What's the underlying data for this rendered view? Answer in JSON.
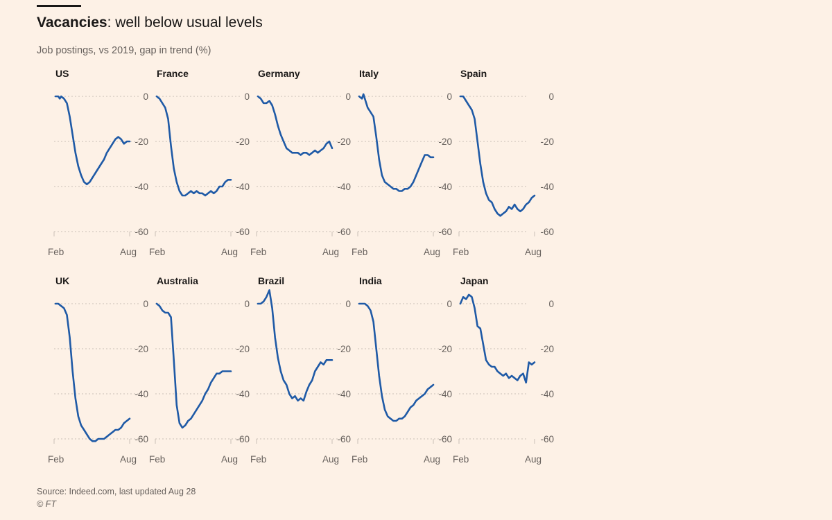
{
  "header": {
    "title_bold": "Vacancies",
    "title_rest": ": well below usual levels",
    "subtitle": "Job postings, vs 2019, gap in trend (%)"
  },
  "footer": {
    "source": "Source: Indeed.com, last updated Aug 28",
    "copyright": "© FT"
  },
  "colors": {
    "line": "#1f5aa6",
    "grid": "#c9bfb5",
    "background": "#fdf1e6"
  },
  "chart_data": [
    {
      "type": "line",
      "title": "US",
      "x_ticks": [
        "Feb",
        "Aug"
      ],
      "ylim": [
        -60,
        0
      ],
      "y_ticks": [
        0,
        -20,
        -40,
        -60
      ],
      "x_range": [
        0,
        26
      ],
      "x": [
        0,
        1,
        1.5,
        2,
        3,
        4,
        5,
        6,
        7,
        8,
        9,
        10,
        11,
        12,
        13,
        14,
        15,
        16,
        17,
        18,
        19,
        20,
        21,
        22,
        23,
        24,
        25,
        26
      ],
      "values": [
        0,
        0,
        -1,
        0,
        -1,
        -3,
        -9,
        -17,
        -25,
        -31,
        -35,
        -38,
        -39,
        -38,
        -36,
        -34,
        -32,
        -30,
        -28,
        -25,
        -23,
        -21,
        -19,
        -18,
        -19,
        -21,
        -20,
        -20
      ]
    },
    {
      "type": "line",
      "title": "France",
      "x_ticks": [
        "Feb",
        "Aug"
      ],
      "ylim": [
        -60,
        0
      ],
      "y_ticks": [
        0,
        -20,
        -40,
        -60
      ],
      "x_range": [
        0,
        26
      ],
      "x": [
        0,
        1,
        2,
        3,
        4,
        5,
        6,
        7,
        8,
        9,
        10,
        11,
        12,
        13,
        14,
        15,
        16,
        17,
        18,
        19,
        20,
        21,
        22,
        23,
        24,
        25,
        26
      ],
      "values": [
        0,
        -1,
        -3,
        -5,
        -10,
        -22,
        -32,
        -38,
        -42,
        -44,
        -44,
        -43,
        -42,
        -43,
        -42,
        -43,
        -43,
        -44,
        -43,
        -42,
        -43,
        -42,
        -40,
        -40,
        -38,
        -37,
        -37
      ]
    },
    {
      "type": "line",
      "title": "Germany",
      "x_ticks": [
        "Feb",
        "Aug"
      ],
      "ylim": [
        -60,
        0
      ],
      "y_ticks": [
        0,
        -20,
        -40,
        -60
      ],
      "x_range": [
        0,
        26
      ],
      "x": [
        0,
        1,
        2,
        3,
        4,
        5,
        6,
        7,
        8,
        9,
        10,
        11,
        12,
        13,
        14,
        15,
        16,
        17,
        18,
        19,
        20,
        21,
        22,
        23,
        24,
        25,
        26
      ],
      "values": [
        0,
        -1,
        -3,
        -3,
        -2,
        -4,
        -8,
        -13,
        -17,
        -20,
        -23,
        -24,
        -25,
        -25,
        -25,
        -26,
        -25,
        -25,
        -26,
        -25,
        -24,
        -25,
        -24,
        -23,
        -21,
        -20,
        -23
      ]
    },
    {
      "type": "line",
      "title": "Italy",
      "x_ticks": [
        "Feb",
        "Aug"
      ],
      "ylim": [
        -60,
        0
      ],
      "y_ticks": [
        0,
        -20,
        -40,
        -60
      ],
      "x_range": [
        0,
        26
      ],
      "x": [
        0,
        1,
        1.5,
        2,
        3,
        4,
        5,
        6,
        7,
        8,
        9,
        10,
        11,
        12,
        13,
        14,
        15,
        16,
        17,
        18,
        19,
        20,
        21,
        22,
        23,
        24,
        25,
        26
      ],
      "values": [
        0,
        -1,
        1,
        -1,
        -5,
        -7,
        -9,
        -18,
        -28,
        -35,
        -38,
        -39,
        -40,
        -41,
        -41,
        -42,
        -42,
        -41,
        -41,
        -40,
        -38,
        -35,
        -32,
        -29,
        -26,
        -26,
        -27,
        -27
      ]
    },
    {
      "type": "line",
      "title": "Spain",
      "x_ticks": [
        "Feb",
        "Aug"
      ],
      "ylim": [
        -60,
        0
      ],
      "y_ticks": [
        0,
        -20,
        -40,
        -60
      ],
      "x_range": [
        0,
        26
      ],
      "x": [
        0,
        1,
        2,
        3,
        4,
        5,
        6,
        7,
        8,
        9,
        10,
        11,
        12,
        13,
        14,
        15,
        16,
        17,
        18,
        19,
        20,
        21,
        22,
        23,
        24,
        25,
        26
      ],
      "values": [
        0,
        0,
        -2,
        -4,
        -6,
        -10,
        -20,
        -30,
        -38,
        -43,
        -46,
        -47,
        -50,
        -52,
        -53,
        -52,
        -51,
        -49,
        -50,
        -48,
        -50,
        -51,
        -50,
        -48,
        -47,
        -45,
        -44
      ]
    },
    {
      "type": "line",
      "title": "UK",
      "x_ticks": [
        "Feb",
        "Aug"
      ],
      "ylim": [
        -60,
        0
      ],
      "y_ticks": [
        0,
        -20,
        -40,
        -60
      ],
      "x_range": [
        0,
        26
      ],
      "x": [
        0,
        1,
        2,
        3,
        4,
        5,
        6,
        7,
        8,
        9,
        10,
        11,
        12,
        13,
        14,
        15,
        16,
        17,
        18,
        19,
        20,
        21,
        22,
        23,
        24,
        25,
        26
      ],
      "values": [
        0,
        0,
        -1,
        -2,
        -5,
        -15,
        -30,
        -42,
        -50,
        -54,
        -56,
        -58,
        -60,
        -61,
        -61,
        -60,
        -60,
        -60,
        -59,
        -58,
        -57,
        -56,
        -56,
        -55,
        -53,
        -52,
        -51
      ]
    },
    {
      "type": "line",
      "title": "Australia",
      "x_ticks": [
        "Feb",
        "Aug"
      ],
      "ylim": [
        -60,
        0
      ],
      "y_ticks": [
        0,
        -20,
        -40,
        -60
      ],
      "x_range": [
        0,
        26
      ],
      "x": [
        0,
        1,
        2,
        3,
        4,
        5,
        6,
        7,
        8,
        9,
        10,
        11,
        12,
        13,
        14,
        15,
        16,
        17,
        18,
        19,
        20,
        21,
        22,
        23,
        24,
        25,
        26
      ],
      "values": [
        0,
        -1,
        -3,
        -4,
        -4,
        -6,
        -25,
        -45,
        -53,
        -55,
        -54,
        -52,
        -51,
        -49,
        -47,
        -45,
        -43,
        -40,
        -38,
        -35,
        -33,
        -31,
        -31,
        -30,
        -30,
        -30,
        -30
      ]
    },
    {
      "type": "line",
      "title": "Brazil",
      "x_ticks": [
        "Feb",
        "Aug"
      ],
      "ylim": [
        -60,
        0
      ],
      "y_ticks": [
        0,
        -20,
        -40,
        -60
      ],
      "x_range": [
        0,
        26
      ],
      "x": [
        0,
        1,
        2,
        3,
        4,
        5,
        6,
        7,
        8,
        9,
        10,
        11,
        12,
        13,
        14,
        15,
        16,
        17,
        18,
        19,
        20,
        21,
        22,
        23,
        24,
        25,
        26
      ],
      "values": [
        0,
        0,
        1,
        3,
        6,
        -2,
        -15,
        -24,
        -30,
        -34,
        -36,
        -40,
        -42,
        -41,
        -43,
        -42,
        -43,
        -39,
        -36,
        -34,
        -30,
        -28,
        -26,
        -27,
        -25,
        -25,
        -25
      ]
    },
    {
      "type": "line",
      "title": "India",
      "x_ticks": [
        "Feb",
        "Aug"
      ],
      "ylim": [
        -60,
        0
      ],
      "y_ticks": [
        0,
        -20,
        -40,
        -60
      ],
      "x_range": [
        0,
        26
      ],
      "x": [
        0,
        1,
        2,
        3,
        4,
        5,
        6,
        7,
        8,
        9,
        10,
        11,
        12,
        13,
        14,
        15,
        16,
        17,
        18,
        19,
        20,
        21,
        22,
        23,
        24,
        25,
        26
      ],
      "values": [
        0,
        0,
        0,
        -1,
        -3,
        -8,
        -20,
        -32,
        -41,
        -47,
        -50,
        -51,
        -52,
        -52,
        -51,
        -51,
        -50,
        -48,
        -46,
        -45,
        -43,
        -42,
        -41,
        -40,
        -38,
        -37,
        -36
      ]
    },
    {
      "type": "line",
      "title": "Japan",
      "x_ticks": [
        "Feb",
        "Aug"
      ],
      "ylim": [
        -60,
        0
      ],
      "y_ticks": [
        0,
        -20,
        -40,
        -60
      ],
      "x_range": [
        0,
        26
      ],
      "x": [
        0,
        1,
        2,
        3,
        4,
        5,
        6,
        7,
        8,
        9,
        10,
        11,
        12,
        13,
        14,
        15,
        16,
        17,
        18,
        19,
        20,
        21,
        22,
        23,
        24,
        25,
        26
      ],
      "values": [
        0,
        3,
        2,
        4,
        3,
        -2,
        -10,
        -11,
        -18,
        -25,
        -27,
        -28,
        -28,
        -30,
        -31,
        -32,
        -31,
        -33,
        -32,
        -33,
        -34,
        -32,
        -31,
        -35,
        -26,
        -27,
        -26
      ]
    }
  ]
}
